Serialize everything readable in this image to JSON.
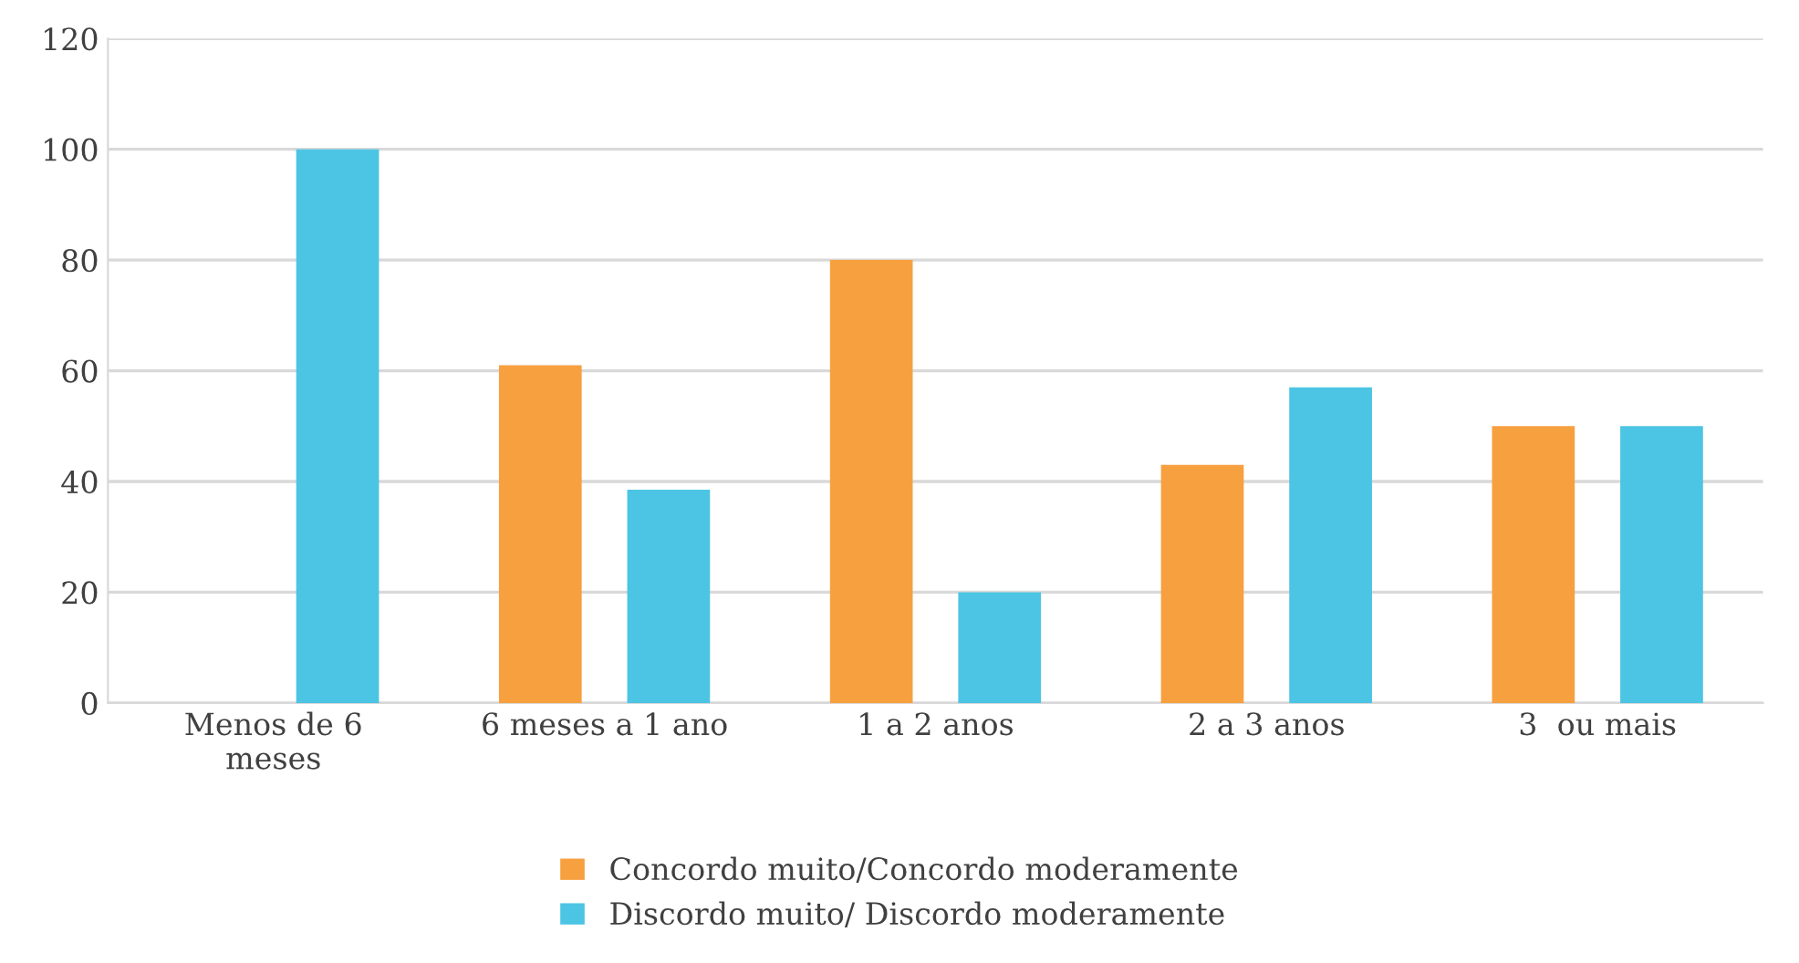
{
  "chart_data": {
    "type": "bar",
    "categories": [
      "Menos de 6\nmeses",
      "6 meses a 1 ano",
      "1 a 2 anos",
      "2 a 3 anos",
      "3  ou mais"
    ],
    "series": [
      {
        "name": "Concordo muito/Concordo moderamente",
        "color": "#f7a040",
        "values": [
          0,
          61,
          80,
          43,
          50
        ]
      },
      {
        "name": "Discordo muito/ Discordo moderamente",
        "color": "#4cc4e4",
        "values": [
          100,
          38.5,
          20,
          57,
          50
        ]
      }
    ],
    "ylim": [
      0,
      120
    ],
    "yticks": [
      0,
      20,
      40,
      60,
      80,
      100,
      120
    ],
    "grid": "y",
    "legend": "bottom"
  }
}
